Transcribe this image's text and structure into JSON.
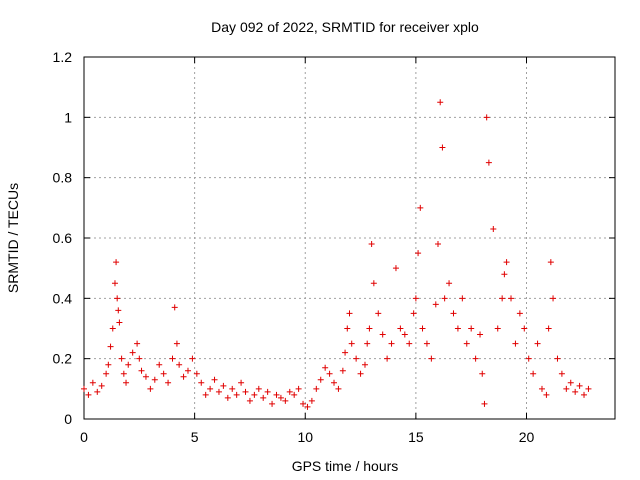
{
  "chart_data": {
    "type": "scatter",
    "title": "Day 092 of 2022, SRMTID for receiver xplo",
    "xlabel": "GPS time / hours",
    "ylabel": "SRMTID / TECUs",
    "xlim": [
      0,
      24
    ],
    "ylim": [
      0,
      1.2
    ],
    "xticks": [
      0,
      5,
      10,
      15,
      20
    ],
    "xtick_labels": [
      "0",
      "5",
      "10",
      "15",
      "20"
    ],
    "yticks": [
      0,
      0.2,
      0.4,
      0.6,
      0.8,
      1.0,
      1.2
    ],
    "ytick_labels": [
      "0",
      "0.2",
      "0.4",
      "0.6",
      "0.8",
      "1",
      "1.2"
    ],
    "grid": true,
    "marker": "+",
    "color": "#e00000",
    "series": [
      {
        "name": "SRMTID",
        "x": [
          0.0,
          0.2,
          0.4,
          0.6,
          0.8,
          1.0,
          1.1,
          1.2,
          1.3,
          1.4,
          1.45,
          1.5,
          1.55,
          1.6,
          1.7,
          1.8,
          1.9,
          2.0,
          2.2,
          2.4,
          2.5,
          2.6,
          2.8,
          3.0,
          3.2,
          3.4,
          3.6,
          3.8,
          4.0,
          4.1,
          4.2,
          4.3,
          4.5,
          4.7,
          4.9,
          5.1,
          5.3,
          5.5,
          5.7,
          5.9,
          6.1,
          6.3,
          6.5,
          6.7,
          6.9,
          7.1,
          7.3,
          7.5,
          7.7,
          7.9,
          8.1,
          8.3,
          8.5,
          8.7,
          8.9,
          9.1,
          9.3,
          9.5,
          9.7,
          9.9,
          10.1,
          10.3,
          10.5,
          10.7,
          10.9,
          11.1,
          11.3,
          11.5,
          11.7,
          11.8,
          11.9,
          12.0,
          12.1,
          12.3,
          12.5,
          12.7,
          12.8,
          12.9,
          13.0,
          13.1,
          13.3,
          13.5,
          13.7,
          13.9,
          14.1,
          14.3,
          14.5,
          14.7,
          14.9,
          15.0,
          15.1,
          15.2,
          15.3,
          15.5,
          15.7,
          15.9,
          16.0,
          16.1,
          16.2,
          16.3,
          16.5,
          16.7,
          16.9,
          17.1,
          17.3,
          17.5,
          17.7,
          17.9,
          18.0,
          18.1,
          18.2,
          18.3,
          18.5,
          18.7,
          18.9,
          19.0,
          19.1,
          19.3,
          19.5,
          19.7,
          19.9,
          20.1,
          20.3,
          20.5,
          20.7,
          20.9,
          21.0,
          21.1,
          21.2,
          21.4,
          21.6,
          21.8,
          22.0,
          22.2,
          22.4,
          22.6,
          22.8
        ],
        "y": [
          0.1,
          0.08,
          0.12,
          0.09,
          0.11,
          0.15,
          0.18,
          0.24,
          0.3,
          0.45,
          0.52,
          0.4,
          0.36,
          0.32,
          0.2,
          0.15,
          0.12,
          0.18,
          0.22,
          0.25,
          0.2,
          0.16,
          0.14,
          0.1,
          0.13,
          0.18,
          0.15,
          0.12,
          0.2,
          0.37,
          0.25,
          0.18,
          0.14,
          0.16,
          0.2,
          0.15,
          0.12,
          0.08,
          0.1,
          0.13,
          0.09,
          0.11,
          0.07,
          0.1,
          0.08,
          0.12,
          0.09,
          0.06,
          0.08,
          0.1,
          0.07,
          0.09,
          0.05,
          0.08,
          0.07,
          0.06,
          0.09,
          0.08,
          0.1,
          0.05,
          0.04,
          0.06,
          0.1,
          0.13,
          0.17,
          0.15,
          0.12,
          0.1,
          0.16,
          0.22,
          0.3,
          0.35,
          0.25,
          0.2,
          0.15,
          0.18,
          0.25,
          0.3,
          0.58,
          0.45,
          0.35,
          0.28,
          0.2,
          0.25,
          0.5,
          0.3,
          0.28,
          0.25,
          0.35,
          0.4,
          0.55,
          0.7,
          0.3,
          0.25,
          0.2,
          0.38,
          0.58,
          1.05,
          0.9,
          0.4,
          0.45,
          0.35,
          0.3,
          0.4,
          0.25,
          0.3,
          0.2,
          0.28,
          0.15,
          0.05,
          1.0,
          0.85,
          0.63,
          0.3,
          0.4,
          0.48,
          0.52,
          0.4,
          0.25,
          0.35,
          0.3,
          0.2,
          0.15,
          0.25,
          0.1,
          0.08,
          0.3,
          0.52,
          0.4,
          0.2,
          0.15,
          0.1,
          0.12,
          0.09,
          0.11,
          0.08,
          0.1
        ]
      }
    ]
  }
}
